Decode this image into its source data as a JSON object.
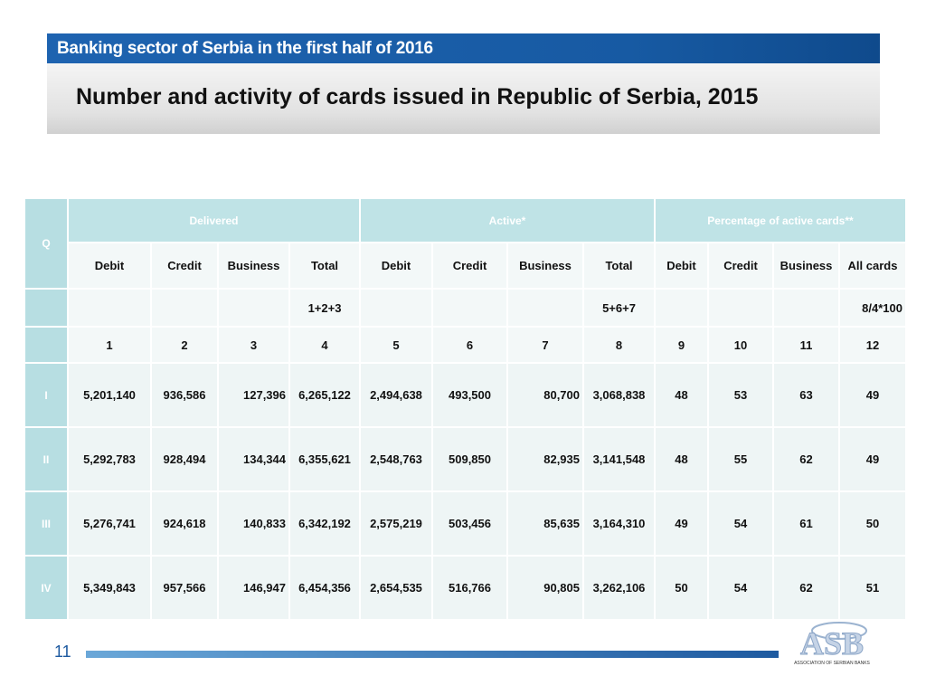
{
  "header": {
    "banner": "Banking sector of Serbia in the first half of 2016",
    "title": "Number and activity of cards issued in Republic of Serbia, 2015"
  },
  "table": {
    "corner": "Q",
    "groups": [
      "Delivered",
      "Active*",
      "Percentage of active cards**"
    ],
    "columns": [
      "Debit",
      "Credit",
      "Business",
      "Total",
      "Debit",
      "Credit",
      "Business",
      "Total",
      "Debit",
      "Credit",
      "Business",
      "All cards"
    ],
    "formulas": [
      "1+2+3",
      "5+6+7",
      "8/4*100"
    ],
    "numbers": [
      "1",
      "2",
      "3",
      "4",
      "5",
      "6",
      "7",
      "8",
      "9",
      "10",
      "11",
      "12"
    ],
    "rows": [
      {
        "label": "I",
        "cells": [
          "5,201,140",
          "936,586",
          "127,396",
          "6,265,122",
          "2,494,638",
          "493,500",
          "80,700",
          "3,068,838",
          "48",
          "53",
          "63",
          "49"
        ]
      },
      {
        "label": "II",
        "cells": [
          "5,292,783",
          "928,494",
          "134,344",
          "6,355,621",
          "2,548,763",
          "509,850",
          "82,935",
          "3,141,548",
          "48",
          "55",
          "62",
          "49"
        ]
      },
      {
        "label": "III",
        "cells": [
          "5,276,741",
          "924,618",
          "140,833",
          "6,342,192",
          "2,575,219",
          "503,456",
          "85,635",
          "3,164,310",
          "49",
          "54",
          "61",
          "50"
        ]
      },
      {
        "label": "IV",
        "cells": [
          "5,349,843",
          "957,566",
          "146,947",
          "6,454,356",
          "2,654,535",
          "516,766",
          "90,805",
          "3,262,106",
          "50",
          "54",
          "62",
          "51"
        ]
      }
    ]
  },
  "footer": {
    "page": "11",
    "logo": "ASB",
    "logo_caption": "ASSOCIATION OF SERBIAN BANKS"
  }
}
